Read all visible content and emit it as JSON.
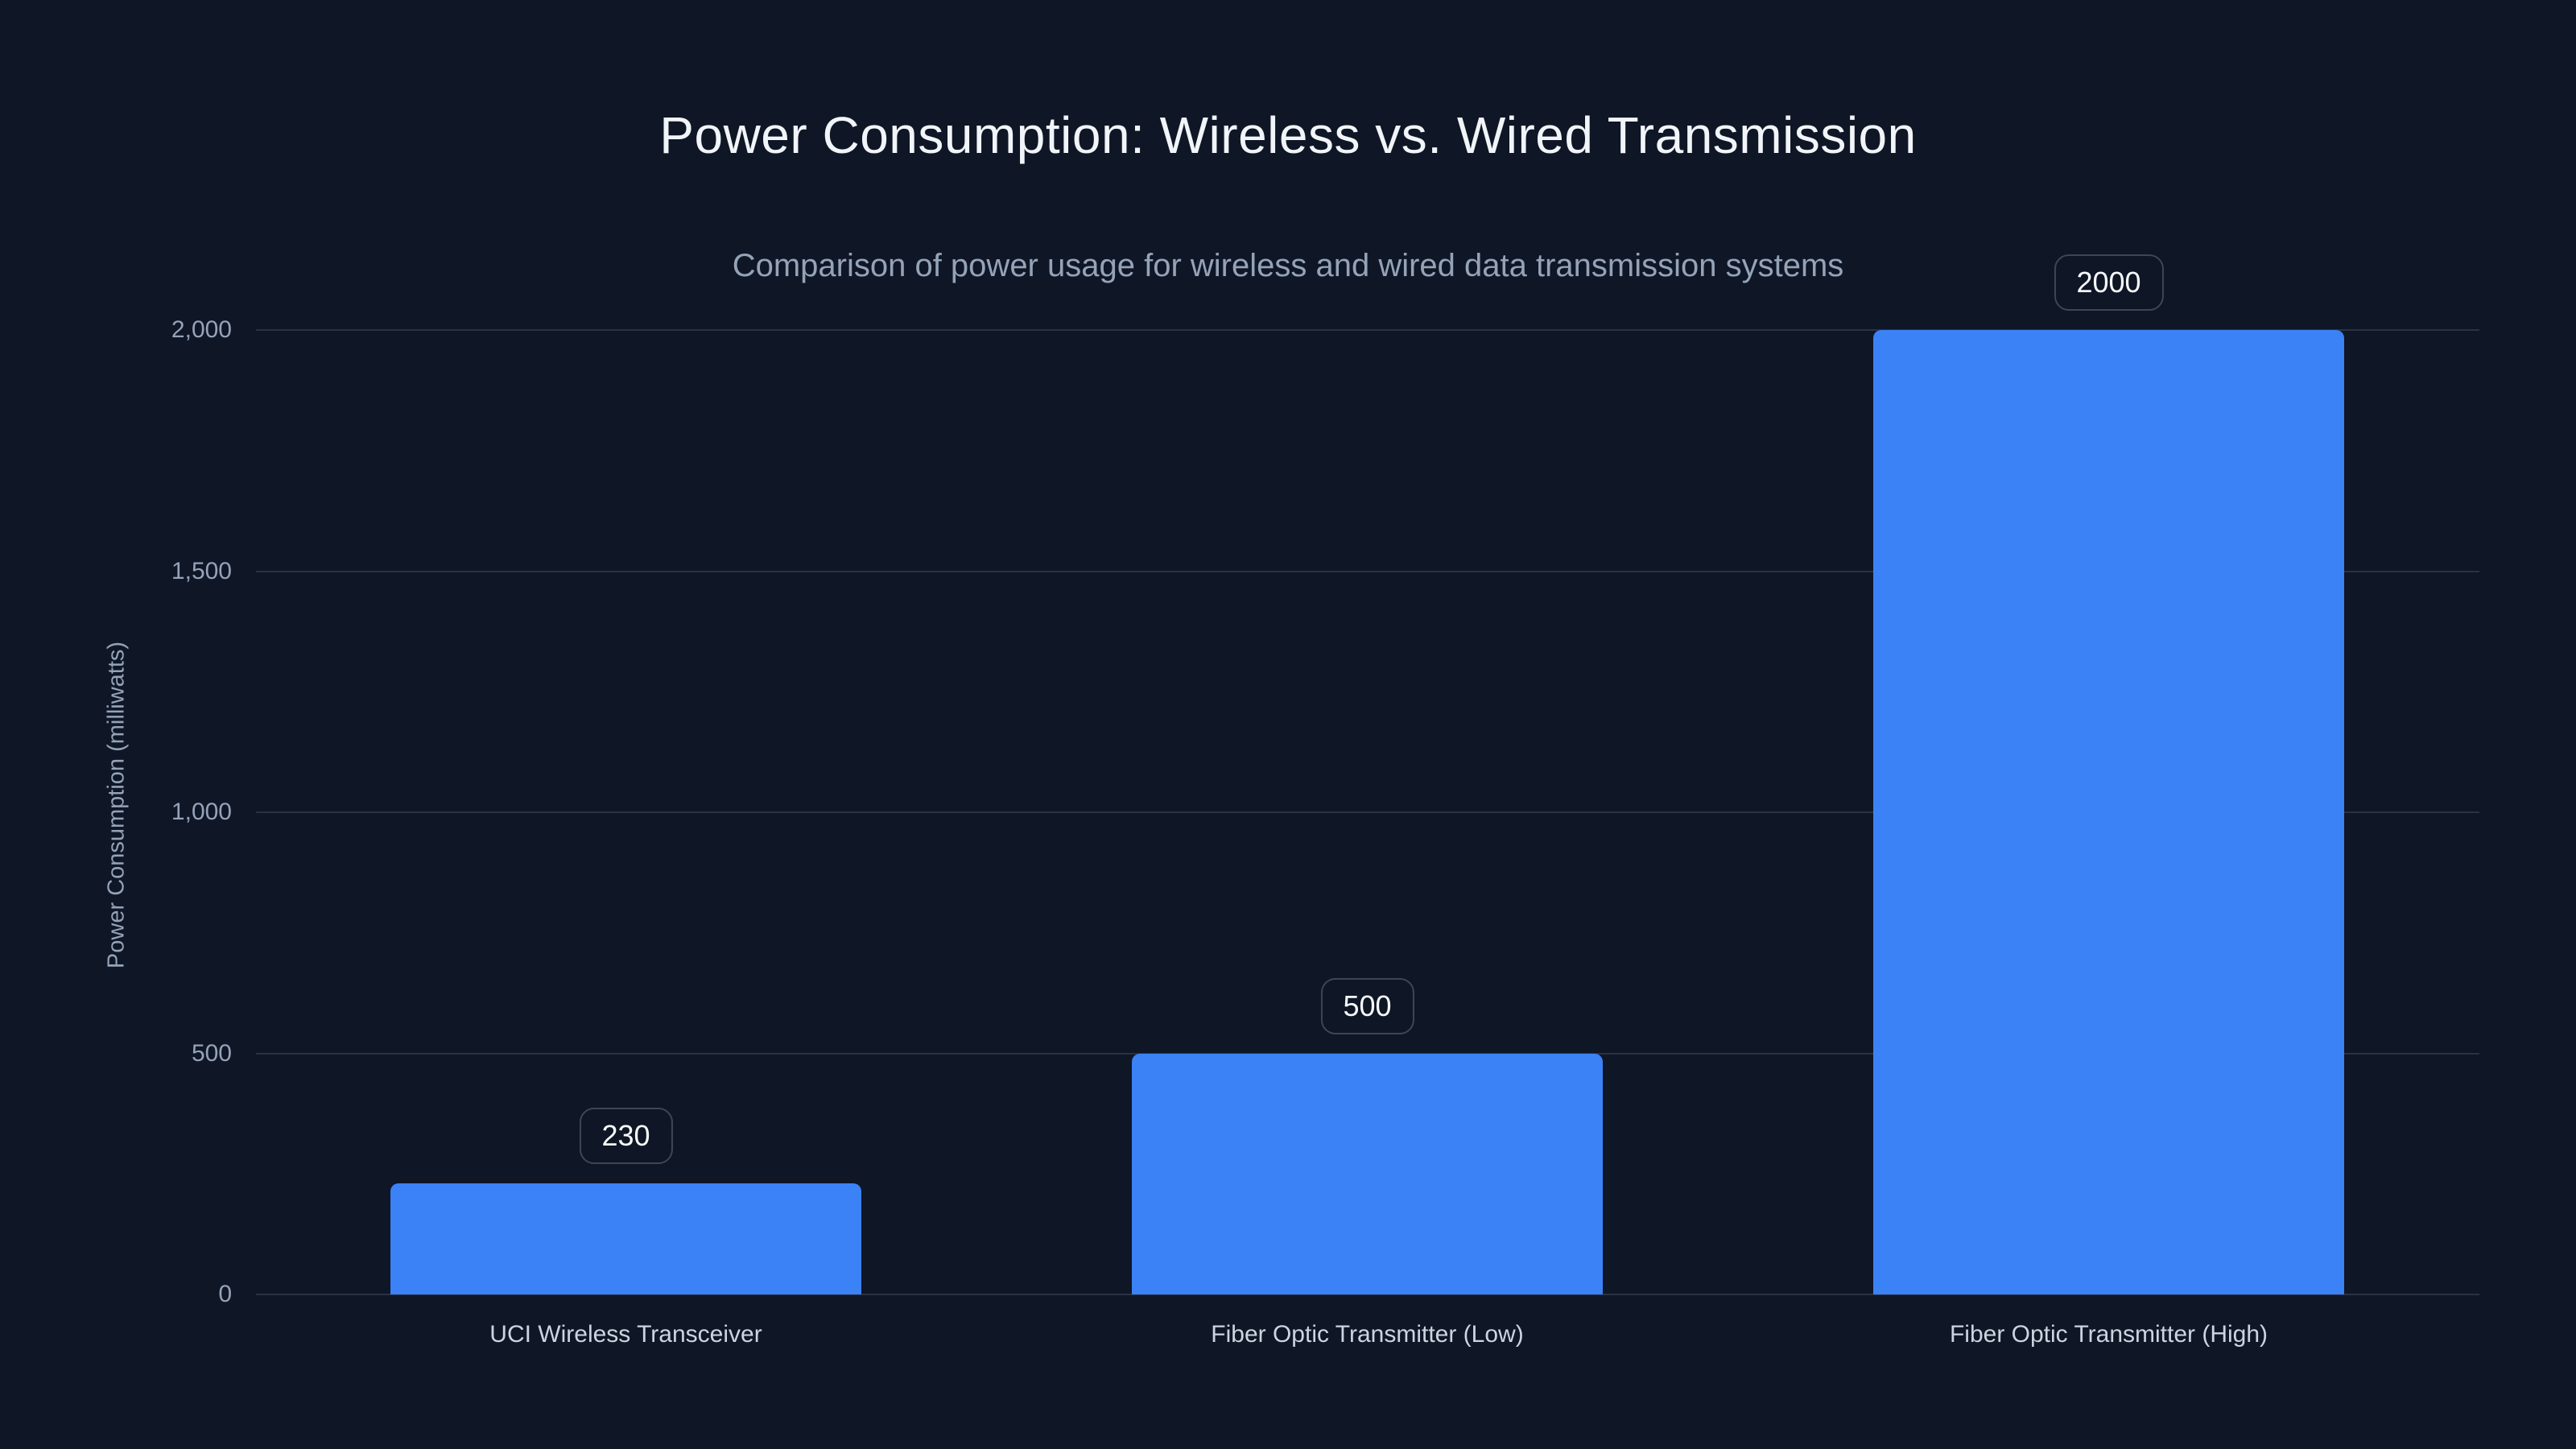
{
  "theme": {
    "background_color": "#0f1626",
    "bar_color": "#3b82f6",
    "grid_color": "rgba(148,163,184,0.20)",
    "tick_color": "#94a3b8",
    "category_label_color": "#cbd5e1",
    "title_color": "#f1f5f9",
    "subtitle_color": "#94a3b8",
    "badge_border_color": "#3b4759",
    "badge_text_color": "#f8fafc"
  },
  "chart_data": {
    "type": "bar",
    "title": "Power Consumption: Wireless vs. Wired Transmission",
    "subtitle": "Comparison of power usage for wireless and wired data transmission systems",
    "categories": [
      "UCI Wireless Transceiver",
      "Fiber Optic Transmitter (Low)",
      "Fiber Optic Transmitter (High)"
    ],
    "values": [
      230,
      500,
      2000
    ],
    "value_labels": [
      "230",
      "500",
      "2000"
    ],
    "xlabel": "",
    "ylabel": "Power Consumption (milliwatts)",
    "ylim": [
      0,
      2000
    ],
    "yticks": [
      {
        "value": 0,
        "label": "0"
      },
      {
        "value": 500,
        "label": "500"
      },
      {
        "value": 1000,
        "label": "1,000"
      },
      {
        "value": 1500,
        "label": "1,500"
      },
      {
        "value": 2000,
        "label": "2,000"
      }
    ],
    "grid": true,
    "legend": false,
    "bar_color": "#3b82f6"
  }
}
